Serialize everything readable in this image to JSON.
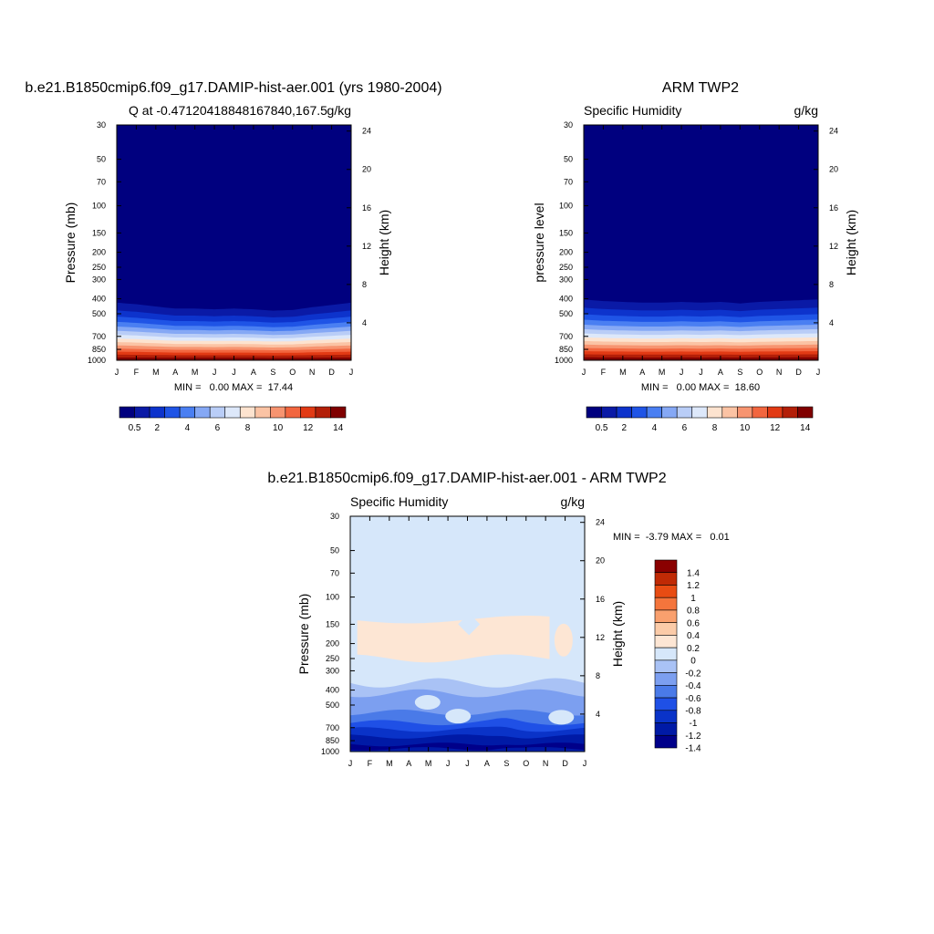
{
  "colors": {
    "scale14": [
      "#00007f",
      "#0a1aa6",
      "#0d33cc",
      "#1f54e6",
      "#4a7ff2",
      "#85a8f5",
      "#b9cdf7",
      "#dde8fa",
      "#fde3cf",
      "#fbc3a4",
      "#f79470",
      "#f2663f",
      "#e23a14",
      "#b31f08",
      "#800000"
    ],
    "diff": [
      "#00008a",
      "#001aa6",
      "#0a33c8",
      "#1f50e6",
      "#4a7ae8",
      "#7c9ff0",
      "#a9c2f5",
      "#d6e7fa",
      "#fde6d4",
      "#fbcba8",
      "#f9a06e",
      "#f4753c",
      "#e84c13",
      "#c02a05",
      "#8a0000"
    ]
  },
  "chart_data": [
    {
      "type": "heatmap",
      "title": "b.e21.B1850cmip6.f09_g17.DAMIP-hist-aer.001 (yrs 1980-2004)",
      "left_string": "Q at -0.47120418848167840,167.5",
      "right_string": "g/kg",
      "ylabel": "Pressure (mb)",
      "ylabel_right": "Height (km)",
      "x_ticks": [
        "J",
        "F",
        "M",
        "A",
        "M",
        "J",
        "J",
        "A",
        "S",
        "O",
        "N",
        "D",
        "J"
      ],
      "y_ticks": [
        "30",
        "50",
        "70",
        "100",
        "150",
        "200",
        "250",
        "300",
        "400",
        "500",
        "700",
        "850",
        "1000"
      ],
      "y_right_ticks": [
        "24",
        "20",
        "16",
        "12",
        "8",
        "4"
      ],
      "stats": "MIN =   0.00 MAX =  17.44",
      "min": 0.0,
      "max": 17.44,
      "colorbar_labels": [
        "0.5",
        "2",
        "4",
        "6",
        "8",
        "10",
        "12",
        "14"
      ],
      "levels": [
        0.5,
        1,
        2,
        3,
        4,
        5,
        6,
        7,
        8,
        9,
        10,
        11,
        12,
        13,
        14
      ],
      "moist_top_pressure_by_month": [
        330,
        340,
        355,
        370,
        370,
        375,
        370,
        375,
        385,
        380,
        360,
        345,
        330
      ]
    },
    {
      "type": "heatmap",
      "title": "ARM TWP2",
      "left_string": "Specific Humidity",
      "right_string": "g/kg",
      "ylabel": "pressure level",
      "ylabel_right": "Height (km)",
      "x_ticks": [
        "J",
        "F",
        "M",
        "A",
        "M",
        "J",
        "J",
        "A",
        "S",
        "O",
        "N",
        "D",
        "J"
      ],
      "y_ticks": [
        "30",
        "50",
        "70",
        "100",
        "150",
        "200",
        "250",
        "300",
        "400",
        "500",
        "700",
        "850",
        "1000"
      ],
      "y_right_ticks": [
        "24",
        "20",
        "16",
        "12",
        "8",
        "4"
      ],
      "stats": "MIN =   0.00 MAX =  18.60",
      "min": 0.0,
      "max": 18.6,
      "colorbar_labels": [
        "0.5",
        "2",
        "4",
        "6",
        "8",
        "10",
        "12",
        "14"
      ],
      "levels": [
        0.5,
        1,
        2,
        3,
        4,
        5,
        6,
        7,
        8,
        9,
        10,
        11,
        12,
        13,
        14
      ],
      "moist_top_pressure_by_month": [
        310,
        320,
        325,
        330,
        330,
        325,
        330,
        325,
        335,
        325,
        320,
        315,
        310
      ]
    },
    {
      "type": "heatmap",
      "title": "b.e21.B1850cmip6.f09_g17.DAMIP-hist-aer.001 - ARM TWP2",
      "left_string": "Specific Humidity",
      "right_string": "g/kg",
      "ylabel": "Pressure (mb)",
      "ylabel_right": "Height (km)",
      "x_ticks": [
        "J",
        "F",
        "M",
        "A",
        "M",
        "J",
        "J",
        "A",
        "S",
        "O",
        "N",
        "D",
        "J"
      ],
      "y_ticks": [
        "30",
        "50",
        "70",
        "100",
        "150",
        "200",
        "250",
        "300",
        "400",
        "500",
        "700",
        "850",
        "1000"
      ],
      "y_right_ticks": [
        "24",
        "20",
        "16",
        "12",
        "8",
        "4"
      ],
      "stats": "MIN =  -3.79 MAX =   0.01",
      "min": -3.79,
      "max": 0.01,
      "colorbar_labels": [
        "1.4",
        "1.2",
        "1",
        "0.8",
        "0.6",
        "0.4",
        "0.2",
        "0",
        "-0.2",
        "-0.4",
        "-0.6",
        "-0.8",
        "-1",
        "-1.2",
        "-1.4"
      ],
      "levels": [
        -1.4,
        -1.2,
        -1,
        -0.8,
        -0.6,
        -0.4,
        -0.2,
        0,
        0.2,
        0.4,
        0.6,
        0.8,
        1,
        1.2,
        1.4
      ]
    }
  ]
}
